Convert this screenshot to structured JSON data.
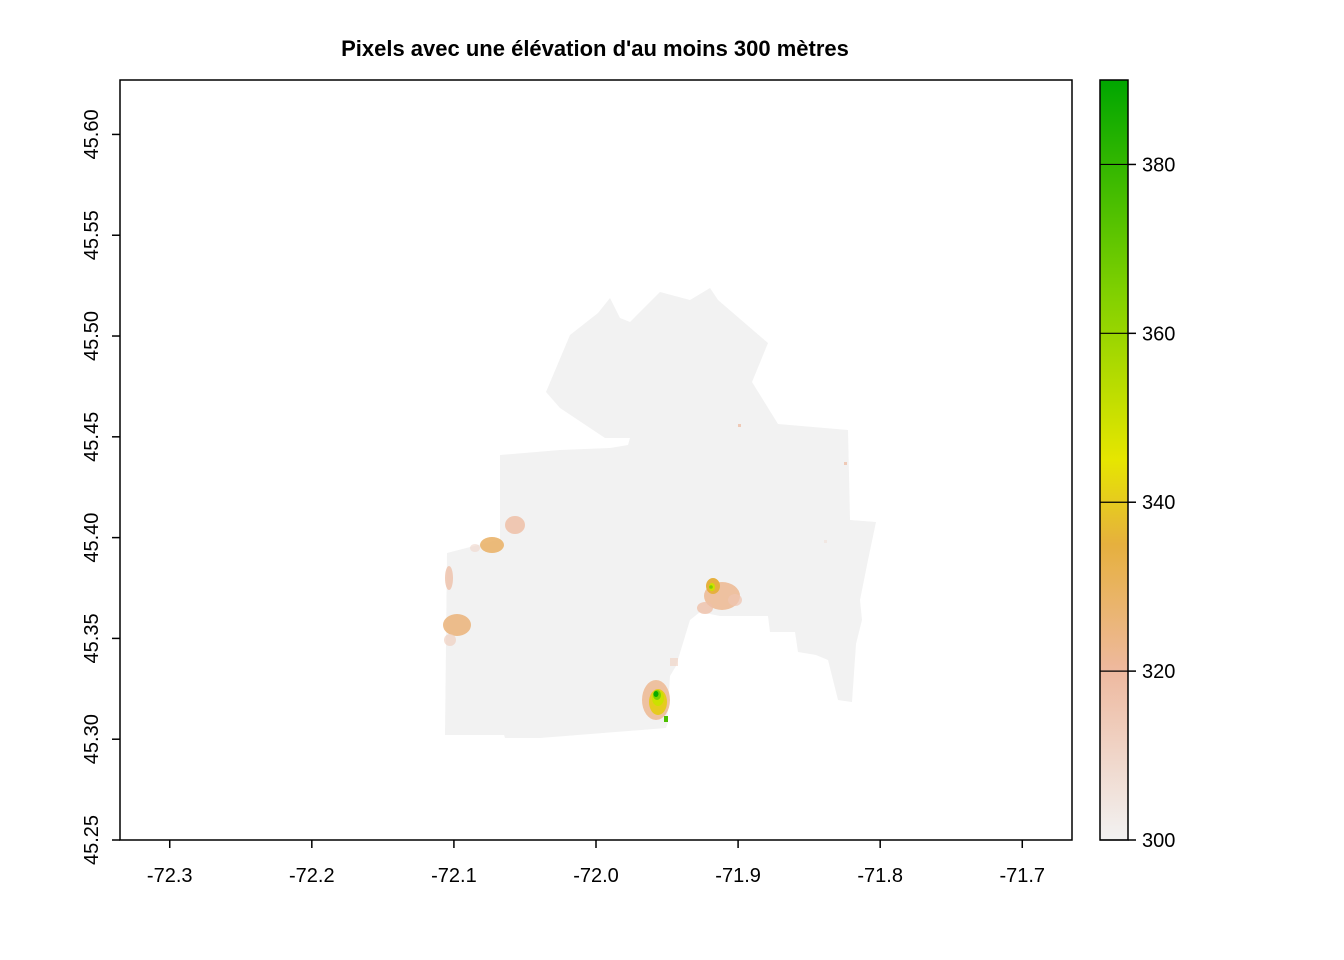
{
  "title": "Pixels avec une élévation d'au moins 300 mètres",
  "x_axis": {
    "ticks": [
      {
        "value": -72.3,
        "label": "-72.3"
      },
      {
        "value": -72.2,
        "label": "-72.2"
      },
      {
        "value": -72.1,
        "label": "-72.1"
      },
      {
        "value": -72.0,
        "label": "-72.0"
      },
      {
        "value": -71.9,
        "label": "-71.9"
      },
      {
        "value": -71.8,
        "label": "-71.8"
      },
      {
        "value": -71.7,
        "label": "-71.7"
      }
    ],
    "range": [
      -72.335,
      -71.665
    ]
  },
  "y_axis": {
    "ticks": [
      {
        "value": 45.25,
        "label": "45.25"
      },
      {
        "value": 45.3,
        "label": "45.30"
      },
      {
        "value": 45.35,
        "label": "45.35"
      },
      {
        "value": 45.4,
        "label": "45.40"
      },
      {
        "value": 45.45,
        "label": "45.45"
      },
      {
        "value": 45.5,
        "label": "45.50"
      },
      {
        "value": 45.55,
        "label": "45.55"
      },
      {
        "value": 45.6,
        "label": "45.60"
      }
    ],
    "range": [
      45.25,
      45.627
    ]
  },
  "legend": {
    "range": [
      300,
      390
    ],
    "ticks": [
      {
        "value": 300,
        "label": "300"
      },
      {
        "value": 320,
        "label": "320"
      },
      {
        "value": 340,
        "label": "340"
      },
      {
        "value": 360,
        "label": "360"
      },
      {
        "value": 380,
        "label": "380"
      }
    ],
    "color_stops": [
      {
        "value": 300,
        "color": "#f2f2f2"
      },
      {
        "value": 320,
        "color": "#eeb99f"
      },
      {
        "value": 335,
        "color": "#e6b03e"
      },
      {
        "value": 345,
        "color": "#e6e600"
      },
      {
        "value": 365,
        "color": "#7fd000"
      },
      {
        "value": 390,
        "color": "#00a600"
      }
    ]
  },
  "chart_data": {
    "type": "heatmap",
    "title": "Pixels avec une élévation d'au moins 300 mètres",
    "xlim": [
      -72.335,
      -71.665
    ],
    "ylim": [
      45.25,
      45.627
    ],
    "value_range": [
      300,
      390
    ],
    "hotspots": [
      {
        "lon": -71.955,
        "lat": 45.321,
        "value": 388
      },
      {
        "lon": -71.916,
        "lat": 45.374,
        "value": 365
      },
      {
        "lon": -72.103,
        "lat": 45.355,
        "value": 328
      },
      {
        "lon": -72.073,
        "lat": 45.397,
        "value": 325
      },
      {
        "lon": -72.053,
        "lat": 45.407,
        "value": 318
      }
    ]
  }
}
